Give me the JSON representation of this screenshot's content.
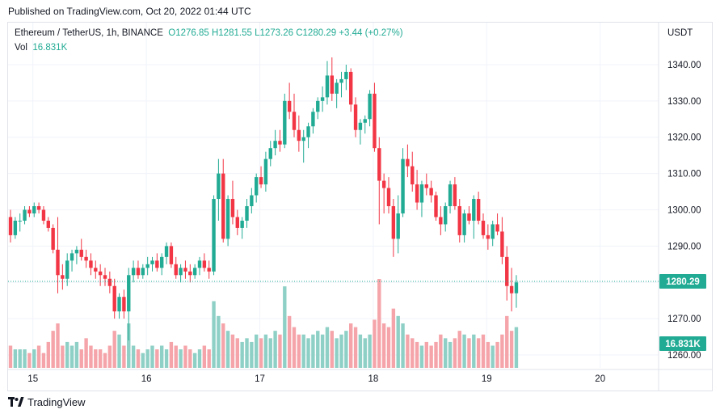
{
  "published": "Published on TradingView.com, Oct 20, 2022 01:44 UTC",
  "legend": {
    "symbol": "Ethereum / TetherUS, 1h, BINANCE",
    "open": "O1276.85",
    "high": "H1281.55",
    "low": "L1273.26",
    "close": "C1280.29",
    "change": "+3.44 (+0.27%)",
    "vol_label": "Vol",
    "vol_value": "16.831K"
  },
  "currency": "USDT",
  "colors": {
    "up": "#22ab94",
    "down": "#f23645",
    "vol_up": "#8fd0c6",
    "vol_down": "#f5a5aa"
  },
  "footer": {
    "brand": "TradingView",
    "logo_icon": "tradingview-logo-icon"
  },
  "chart_data": {
    "type": "candlestick",
    "ylim": [
      1258,
      1344
    ],
    "y_ticks": [
      1260,
      1270,
      1280,
      1290,
      1300,
      1310,
      1320,
      1330,
      1340
    ],
    "y_tick_labels": [
      "1260.00",
      "1270.00",
      "1280.00",
      "1290.00",
      "1300.00",
      "1310.00",
      "1320.00",
      "1330.00",
      "1340.00"
    ],
    "x_ticks": [
      {
        "label": "15",
        "index": 2
      },
      {
        "label": "16",
        "index": 26
      },
      {
        "label": "17",
        "index": 50
      },
      {
        "label": "18",
        "index": 74
      },
      {
        "label": "19",
        "index": 98
      },
      {
        "label": "20",
        "index": 122
      }
    ],
    "current_price": 1280.29,
    "current_price_label": "1280.29",
    "current_volume_label": "16.831K",
    "vol_max": 24,
    "candles": [
      [
        1298,
        1300,
        1291,
        1293,
        6
      ],
      [
        1293,
        1298,
        1292,
        1297,
        5
      ],
      [
        1297,
        1299,
        1294,
        1297,
        5
      ],
      [
        1297,
        1301,
        1296,
        1300,
        5
      ],
      [
        1300,
        1301,
        1298,
        1299,
        4
      ],
      [
        1299,
        1302,
        1298,
        1301,
        5
      ],
      [
        1301,
        1302,
        1299,
        1300,
        6
      ],
      [
        1300,
        1301,
        1296,
        1297,
        4
      ],
      [
        1297,
        1298,
        1294,
        1295,
        7
      ],
      [
        1295,
        1296,
        1288,
        1289,
        10
      ],
      [
        1289,
        1298,
        1277,
        1282,
        12
      ],
      [
        1282,
        1285,
        1278,
        1281,
        6
      ],
      [
        1281,
        1288,
        1279,
        1286,
        7
      ],
      [
        1286,
        1289,
        1283,
        1288,
        6
      ],
      [
        1288,
        1290,
        1285,
        1289,
        7
      ],
      [
        1289,
        1292,
        1286,
        1287,
        5
      ],
      [
        1287,
        1289,
        1284,
        1286,
        8
      ],
      [
        1286,
        1288,
        1282,
        1284,
        6
      ],
      [
        1284,
        1286,
        1281,
        1283,
        5
      ],
      [
        1283,
        1285,
        1279,
        1282,
        5
      ],
      [
        1282,
        1284,
        1279,
        1281,
        4
      ],
      [
        1281,
        1283,
        1277,
        1279,
        6
      ],
      [
        1279,
        1281,
        1270,
        1272,
        10
      ],
      [
        1272,
        1277,
        1270,
        1276,
        9
      ],
      [
        1276,
        1278,
        1270,
        1272,
        6
      ],
      [
        1272,
        1284,
        1264,
        1282,
        12
      ],
      [
        1282,
        1286,
        1280,
        1284,
        6
      ],
      [
        1284,
        1286,
        1281,
        1282,
        5
      ],
      [
        1282,
        1285,
        1281,
        1284,
        4
      ],
      [
        1284,
        1287,
        1282,
        1285,
        5
      ],
      [
        1285,
        1287,
        1283,
        1286,
        6
      ],
      [
        1286,
        1288,
        1283,
        1284,
        5
      ],
      [
        1284,
        1288,
        1282,
        1287,
        6
      ],
      [
        1287,
        1291,
        1285,
        1290,
        5
      ],
      [
        1290,
        1291,
        1284,
        1285,
        7
      ],
      [
        1285,
        1287,
        1281,
        1282,
        6
      ],
      [
        1282,
        1285,
        1280,
        1284,
        5
      ],
      [
        1284,
        1286,
        1281,
        1283,
        6
      ],
      [
        1283,
        1285,
        1280,
        1282,
        5
      ],
      [
        1282,
        1285,
        1281,
        1284,
        4
      ],
      [
        1284,
        1287,
        1282,
        1286,
        5
      ],
      [
        1286,
        1288,
        1283,
        1284,
        6
      ],
      [
        1284,
        1286,
        1281,
        1283,
        5
      ],
      [
        1283,
        1304,
        1282,
        1303,
        18
      ],
      [
        1303,
        1314,
        1297,
        1310,
        14
      ],
      [
        1310,
        1314,
        1291,
        1292,
        12
      ],
      [
        1292,
        1304,
        1290,
        1303,
        10
      ],
      [
        1303,
        1308,
        1296,
        1298,
        9
      ],
      [
        1298,
        1300,
        1293,
        1295,
        8
      ],
      [
        1295,
        1298,
        1292,
        1297,
        7
      ],
      [
        1297,
        1303,
        1295,
        1301,
        8
      ],
      [
        1301,
        1306,
        1299,
        1304,
        7
      ],
      [
        1304,
        1310,
        1302,
        1309,
        9
      ],
      [
        1309,
        1312,
        1306,
        1307,
        8
      ],
      [
        1307,
        1316,
        1305,
        1314,
        9
      ],
      [
        1314,
        1319,
        1312,
        1317,
        8
      ],
      [
        1317,
        1322,
        1315,
        1319,
        10
      ],
      [
        1319,
        1322,
        1316,
        1318,
        9
      ],
      [
        1318,
        1332,
        1317,
        1330,
        22
      ],
      [
        1330,
        1335,
        1325,
        1327,
        14
      ],
      [
        1327,
        1332,
        1320,
        1322,
        11
      ],
      [
        1322,
        1326,
        1316,
        1319,
        9
      ],
      [
        1319,
        1322,
        1313,
        1320,
        9
      ],
      [
        1320,
        1324,
        1317,
        1323,
        8
      ],
      [
        1323,
        1328,
        1321,
        1327,
        9
      ],
      [
        1327,
        1331,
        1325,
        1330,
        10
      ],
      [
        1330,
        1334,
        1327,
        1331,
        9
      ],
      [
        1331,
        1341,
        1329,
        1337,
        11
      ],
      [
        1337,
        1342,
        1330,
        1332,
        10
      ],
      [
        1332,
        1336,
        1328,
        1335,
        8
      ],
      [
        1335,
        1338,
        1331,
        1336,
        9
      ],
      [
        1336,
        1340,
        1333,
        1338,
        10
      ],
      [
        1338,
        1339,
        1327,
        1329,
        12
      ],
      [
        1329,
        1331,
        1320,
        1322,
        11
      ],
      [
        1322,
        1325,
        1318,
        1324,
        9
      ],
      [
        1324,
        1326,
        1321,
        1325,
        8
      ],
      [
        1325,
        1333,
        1323,
        1332,
        9
      ],
      [
        1332,
        1335,
        1316,
        1317,
        13
      ],
      [
        1317,
        1320,
        1296,
        1308,
        24
      ],
      [
        1308,
        1310,
        1299,
        1306,
        12
      ],
      [
        1306,
        1309,
        1299,
        1301,
        11
      ],
      [
        1301,
        1303,
        1287,
        1292,
        16
      ],
      [
        1292,
        1304,
        1288,
        1299,
        14
      ],
      [
        1299,
        1317,
        1298,
        1314,
        12
      ],
      [
        1314,
        1318,
        1309,
        1312,
        9
      ],
      [
        1312,
        1316,
        1305,
        1307,
        8
      ],
      [
        1307,
        1311,
        1300,
        1302,
        7
      ],
      [
        1302,
        1308,
        1298,
        1307,
        6
      ],
      [
        1307,
        1310,
        1304,
        1306,
        7
      ],
      [
        1306,
        1308,
        1302,
        1304,
        6
      ],
      [
        1304,
        1305,
        1297,
        1298,
        7
      ],
      [
        1298,
        1301,
        1293,
        1296,
        9
      ],
      [
        1296,
        1302,
        1294,
        1301,
        8
      ],
      [
        1301,
        1308,
        1299,
        1307,
        7
      ],
      [
        1307,
        1309,
        1300,
        1301,
        8
      ],
      [
        1301,
        1303,
        1291,
        1293,
        10
      ],
      [
        1293,
        1300,
        1291,
        1299,
        9
      ],
      [
        1299,
        1301,
        1296,
        1297,
        8
      ],
      [
        1297,
        1304,
        1292,
        1303,
        9
      ],
      [
        1303,
        1305,
        1296,
        1297,
        8
      ],
      [
        1297,
        1299,
        1292,
        1293,
        9
      ],
      [
        1293,
        1296,
        1289,
        1292,
        7
      ],
      [
        1292,
        1297,
        1290,
        1296,
        6
      ],
      [
        1296,
        1299,
        1293,
        1294,
        7
      ],
      [
        1294,
        1298,
        1285,
        1287,
        9
      ],
      [
        1287,
        1290,
        1275,
        1279,
        14
      ],
      [
        1279,
        1284,
        1272,
        1277,
        10
      ],
      [
        1277,
        1282,
        1273,
        1280,
        11
      ]
    ]
  }
}
